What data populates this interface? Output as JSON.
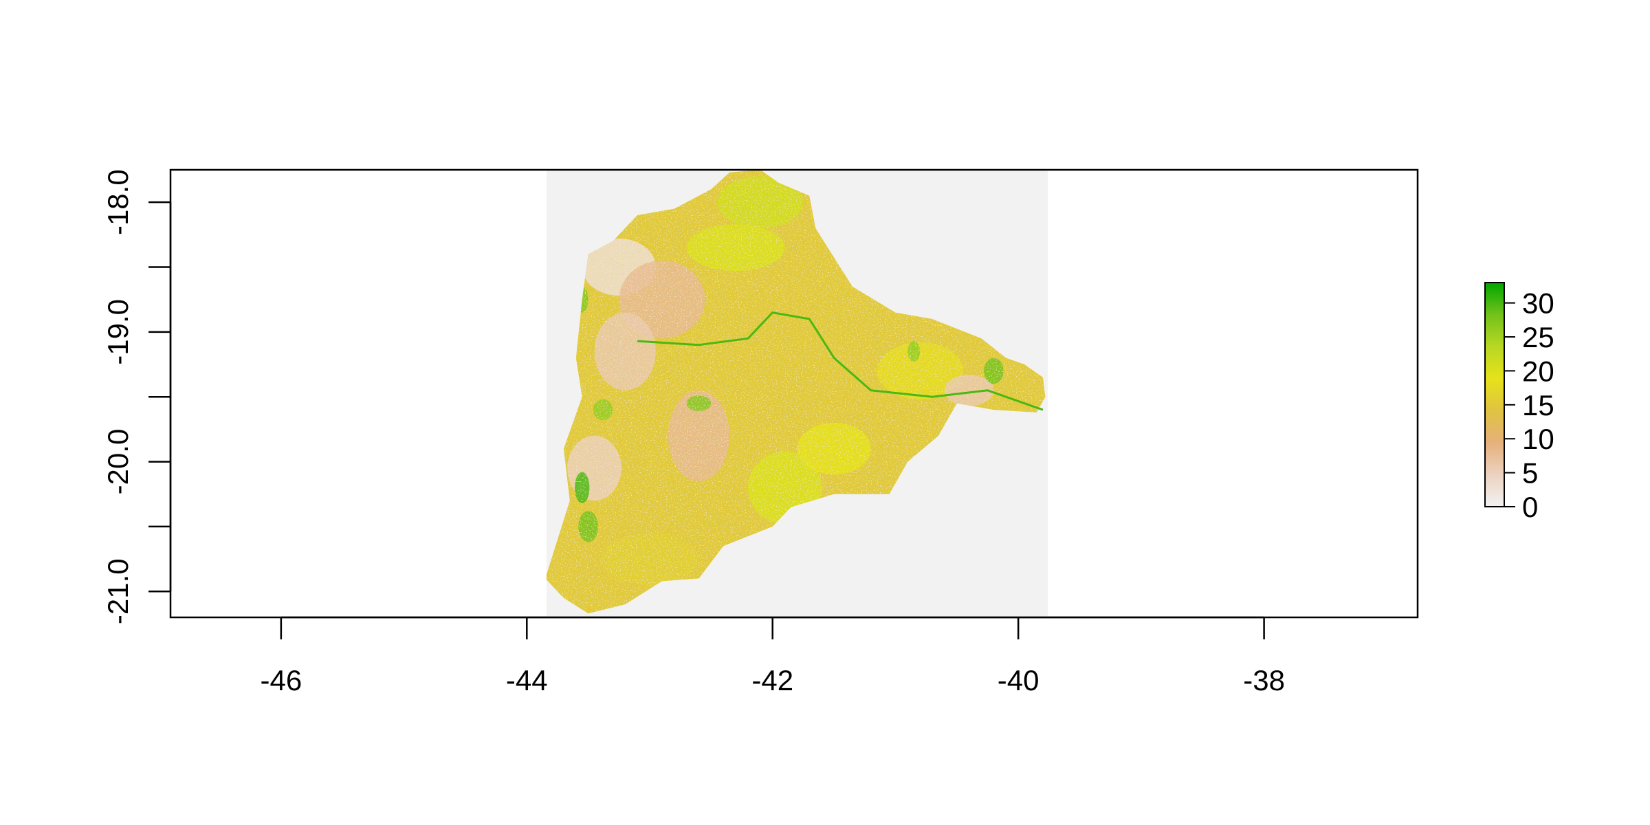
{
  "chart_data": {
    "type": "heatmap",
    "title": "",
    "xlabel": "",
    "ylabel": "",
    "xlim": [
      -46.9,
      -36.75
    ],
    "ylim": [
      -21.2,
      -17.75
    ],
    "x_ticks": [
      {
        "value": -46,
        "label": "-46"
      },
      {
        "value": -44,
        "label": "-44"
      },
      {
        "value": -42,
        "label": "-42"
      },
      {
        "value": -40,
        "label": "-40"
      },
      {
        "value": -38,
        "label": "-38"
      }
    ],
    "y_ticks": [
      {
        "value": -18.0,
        "label": "-18.0"
      },
      {
        "value": -18.5,
        "label": ""
      },
      {
        "value": -19.0,
        "label": "-19.0"
      },
      {
        "value": -19.5,
        "label": ""
      },
      {
        "value": -20.0,
        "label": "-20.0"
      },
      {
        "value": -20.5,
        "label": ""
      },
      {
        "value": -21.0,
        "label": "-21.0"
      }
    ],
    "raster_extent": {
      "xmin": -43.84,
      "xmax": -39.76,
      "ymin": -21.19,
      "ymax": -17.75
    },
    "raster_background": "#f2f2f2",
    "region_outline": [
      [
        -42.35,
        -17.77
      ],
      [
        -42.1,
        -17.75
      ],
      [
        -41.95,
        -17.85
      ],
      [
        -41.7,
        -17.95
      ],
      [
        -41.65,
        -18.2
      ],
      [
        -41.55,
        -18.35
      ],
      [
        -41.35,
        -18.65
      ],
      [
        -41.0,
        -18.85
      ],
      [
        -40.7,
        -18.9
      ],
      [
        -40.3,
        -19.05
      ],
      [
        -40.1,
        -19.2
      ],
      [
        -39.95,
        -19.25
      ],
      [
        -39.8,
        -19.35
      ],
      [
        -39.78,
        -19.5
      ],
      [
        -39.85,
        -19.62
      ],
      [
        -40.2,
        -19.6
      ],
      [
        -40.5,
        -19.55
      ],
      [
        -40.65,
        -19.8
      ],
      [
        -40.9,
        -20.0
      ],
      [
        -41.05,
        -20.25
      ],
      [
        -41.5,
        -20.25
      ],
      [
        -41.85,
        -20.35
      ],
      [
        -42.0,
        -20.5
      ],
      [
        -42.4,
        -20.65
      ],
      [
        -42.6,
        -20.9
      ],
      [
        -42.9,
        -20.92
      ],
      [
        -43.2,
        -21.1
      ],
      [
        -43.5,
        -21.17
      ],
      [
        -43.7,
        -21.05
      ],
      [
        -43.85,
        -20.9
      ],
      [
        -43.75,
        -20.6
      ],
      [
        -43.65,
        -20.3
      ],
      [
        -43.7,
        -19.9
      ],
      [
        -43.55,
        -19.5
      ],
      [
        -43.6,
        -19.2
      ],
      [
        -43.55,
        -18.75
      ],
      [
        -43.5,
        -18.4
      ],
      [
        -43.3,
        -18.3
      ],
      [
        -43.1,
        -18.1
      ],
      [
        -42.8,
        -18.05
      ],
      [
        -42.5,
        -17.9
      ]
    ],
    "dominant_value": 15,
    "value_patches": [
      {
        "x": -42.1,
        "y": -18.0,
        "value": 21,
        "rx": 0.35,
        "ry": 0.2
      },
      {
        "x": -42.3,
        "y": -18.35,
        "value": 20,
        "rx": 0.4,
        "ry": 0.18
      },
      {
        "x": -43.25,
        "y": -18.5,
        "value": 3,
        "rx": 0.3,
        "ry": 0.22
      },
      {
        "x": -42.9,
        "y": -18.75,
        "value": 8,
        "rx": 0.35,
        "ry": 0.3
      },
      {
        "x": -43.2,
        "y": -19.15,
        "value": 6,
        "rx": 0.25,
        "ry": 0.3
      },
      {
        "x": -42.6,
        "y": -19.8,
        "value": 8,
        "rx": 0.25,
        "ry": 0.35
      },
      {
        "x": -43.45,
        "y": -20.05,
        "value": 5,
        "rx": 0.22,
        "ry": 0.25
      },
      {
        "x": -41.9,
        "y": -20.2,
        "value": 20,
        "rx": 0.3,
        "ry": 0.28
      },
      {
        "x": -41.5,
        "y": -19.9,
        "value": 19,
        "rx": 0.3,
        "ry": 0.2
      },
      {
        "x": -40.8,
        "y": -19.3,
        "value": 18,
        "rx": 0.35,
        "ry": 0.22
      },
      {
        "x": -40.4,
        "y": -19.45,
        "value": 6,
        "rx": 0.2,
        "ry": 0.12
      },
      {
        "x": -43.0,
        "y": -20.75,
        "value": 16,
        "rx": 0.4,
        "ry": 0.2
      },
      {
        "x": -43.5,
        "y": -20.5,
        "value": 28,
        "rx": 0.08,
        "ry": 0.12
      },
      {
        "x": -43.55,
        "y": -20.2,
        "value": 30,
        "rx": 0.06,
        "ry": 0.12
      },
      {
        "x": -43.55,
        "y": -18.75,
        "value": 27,
        "rx": 0.05,
        "ry": 0.1
      },
      {
        "x": -43.38,
        "y": -19.6,
        "value": 26,
        "rx": 0.08,
        "ry": 0.08
      },
      {
        "x": -42.6,
        "y": -19.55,
        "value": 27,
        "rx": 0.1,
        "ry": 0.06
      },
      {
        "x": -40.85,
        "y": -19.15,
        "value": 26,
        "rx": 0.05,
        "ry": 0.08
      },
      {
        "x": -40.2,
        "y": -19.3,
        "value": 28,
        "rx": 0.08,
        "ry": 0.1
      }
    ],
    "river_lines": [
      [
        [
          -43.1,
          -19.07
        ],
        [
          -42.6,
          -19.1
        ],
        [
          -42.2,
          -19.05
        ],
        [
          -42.0,
          -18.85
        ],
        [
          -41.7,
          -18.9
        ],
        [
          -41.5,
          -19.2
        ],
        [
          -41.2,
          -19.45
        ],
        [
          -40.7,
          -19.5
        ],
        [
          -40.25,
          -19.45
        ],
        [
          -39.95,
          -19.55
        ],
        [
          -39.8,
          -19.6
        ]
      ]
    ],
    "legend": {
      "position": "right",
      "zlim": [
        0,
        33
      ],
      "ticks": [
        {
          "value": 0,
          "label": "0"
        },
        {
          "value": 5,
          "label": "5"
        },
        {
          "value": 10,
          "label": "10"
        },
        {
          "value": 15,
          "label": "15"
        },
        {
          "value": 20,
          "label": "20"
        },
        {
          "value": 25,
          "label": "25"
        },
        {
          "value": 30,
          "label": "30"
        }
      ],
      "colors": [
        "#f2f2f2",
        "#ecd2c0",
        "#e6b07b",
        "#e0c341",
        "#e6e21a",
        "#b8d823",
        "#72c21b",
        "#00a600"
      ]
    }
  }
}
